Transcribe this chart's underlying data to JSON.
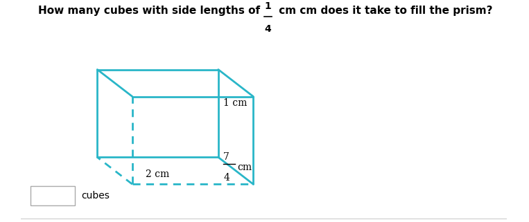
{
  "title_text": "How many cubes with side lengths of",
  "title_fraction_num": "1",
  "title_fraction_den": "4",
  "title_unit": "cm does it take to fill the prism?",
  "prism_color": "#29b6c8",
  "dashed_color": "#29b6c8",
  "bg_color": "#ffffff",
  "label_1_cm": "1 cm",
  "label_7_4_num": "7",
  "label_7_4_den": "4",
  "label_7_4_unit": "cm",
  "label_2_cm": "2 cm",
  "input_box_label": "cubes",
  "font_size_title": 11,
  "font_size_labels": 10
}
